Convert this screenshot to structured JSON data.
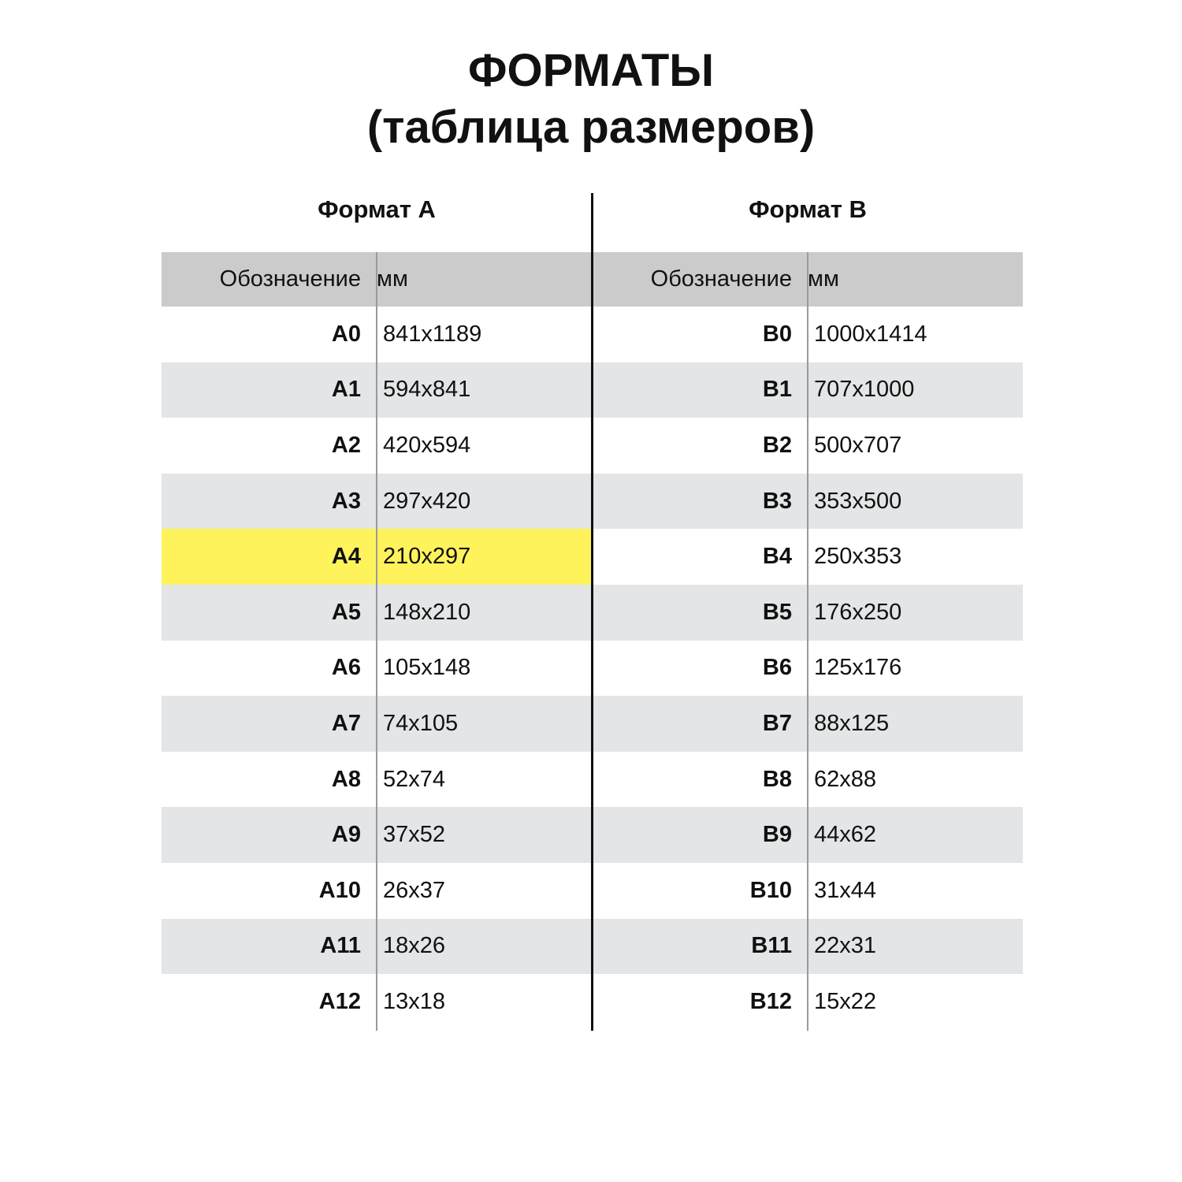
{
  "title_line1": "ФОРМАТЫ",
  "title_line2": "(таблица размеров)",
  "colors": {
    "header": "#cbcbcb",
    "stripe": "#e3e5e6",
    "highlight": "#fff35c"
  },
  "tables": [
    {
      "title": "Формат А",
      "columns": [
        "Обозначение",
        "мм"
      ],
      "highlighted": "A4",
      "rows": [
        [
          "A0",
          "841x1189"
        ],
        [
          "A1",
          "594x841"
        ],
        [
          "A2",
          "420x594"
        ],
        [
          "A3",
          "297x420"
        ],
        [
          "A4",
          "210x297"
        ],
        [
          "A5",
          "148x210"
        ],
        [
          "A6",
          "105x148"
        ],
        [
          "A7",
          "74x105"
        ],
        [
          "A8",
          "52x74"
        ],
        [
          "A9",
          "37x52"
        ],
        [
          "A10",
          "26x37"
        ],
        [
          "A11",
          "18x26"
        ],
        [
          "A12",
          "13x18"
        ]
      ]
    },
    {
      "title": "Формат В",
      "columns": [
        "Обозначение",
        "мм"
      ],
      "highlighted": "",
      "rows": [
        [
          "B0",
          "1000x1414"
        ],
        [
          "B1",
          "707x1000"
        ],
        [
          "B2",
          "500x707"
        ],
        [
          "B3",
          "353x500"
        ],
        [
          "B4",
          "250x353"
        ],
        [
          "B5",
          "176x250"
        ],
        [
          "B6",
          "125x176"
        ],
        [
          "B7",
          "88x125"
        ],
        [
          "B8",
          "62x88"
        ],
        [
          "B9",
          "44x62"
        ],
        [
          "B10",
          "31x44"
        ],
        [
          "B11",
          "22x31"
        ],
        [
          "B12",
          "15x22"
        ]
      ]
    }
  ]
}
